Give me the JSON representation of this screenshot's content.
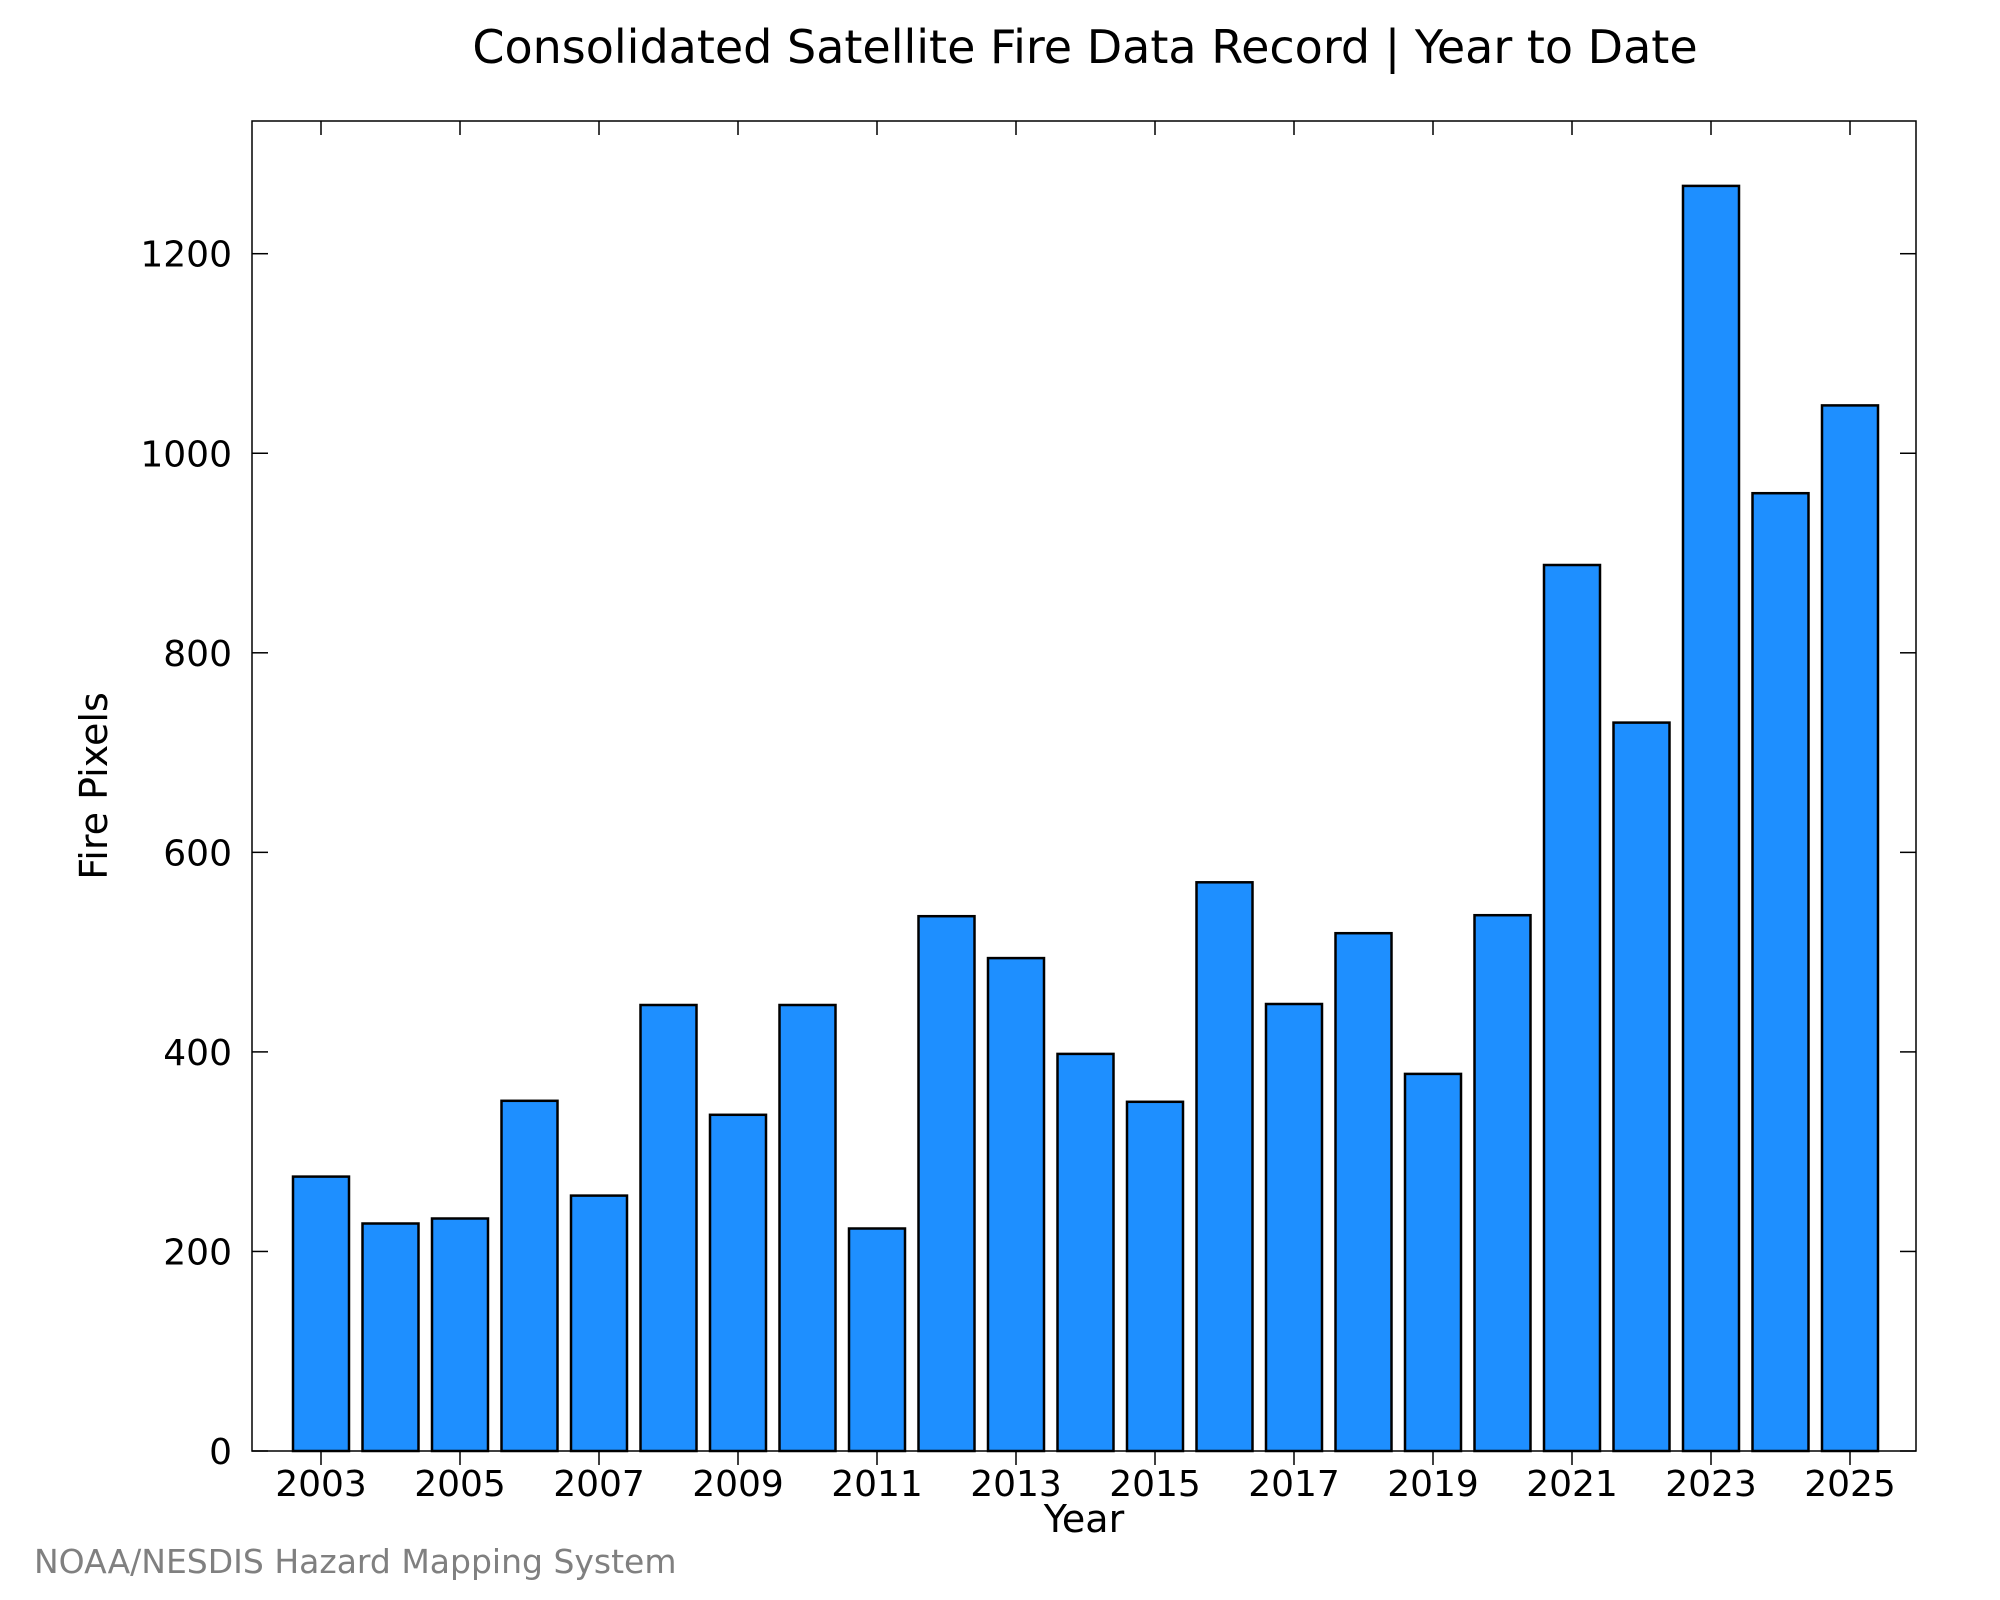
{
  "chart_data": {
    "type": "bar",
    "title": "Consolidated Satellite Fire Data Record | Year to Date",
    "xlabel": "Year",
    "ylabel": "Fire Pixels",
    "categories": [
      "2003",
      "2004",
      "2005",
      "2006",
      "2007",
      "2008",
      "2009",
      "2010",
      "2011",
      "2012",
      "2013",
      "2014",
      "2015",
      "2016",
      "2017",
      "2018",
      "2019",
      "2020",
      "2021",
      "2022",
      "2023",
      "2024",
      "2025"
    ],
    "values": [
      275,
      228,
      233,
      351,
      256,
      447,
      337,
      447,
      223,
      536,
      494,
      398,
      350,
      570,
      448,
      519,
      378,
      537,
      888,
      730,
      1268,
      960,
      1048
    ],
    "x_tick_labels": [
      "2003",
      "2005",
      "2007",
      "2009",
      "2011",
      "2013",
      "2015",
      "2017",
      "2019",
      "2021",
      "2023",
      "2025"
    ],
    "y_ticks": [
      0,
      200,
      400,
      600,
      800,
      1000,
      1200
    ],
    "ylim": [
      0,
      1333
    ],
    "grid": false,
    "legend": "none",
    "bar_color": "#1e8fff",
    "bar_edge_color": "#000000"
  },
  "credit": "NOAA/NESDIS Hazard Mapping System"
}
